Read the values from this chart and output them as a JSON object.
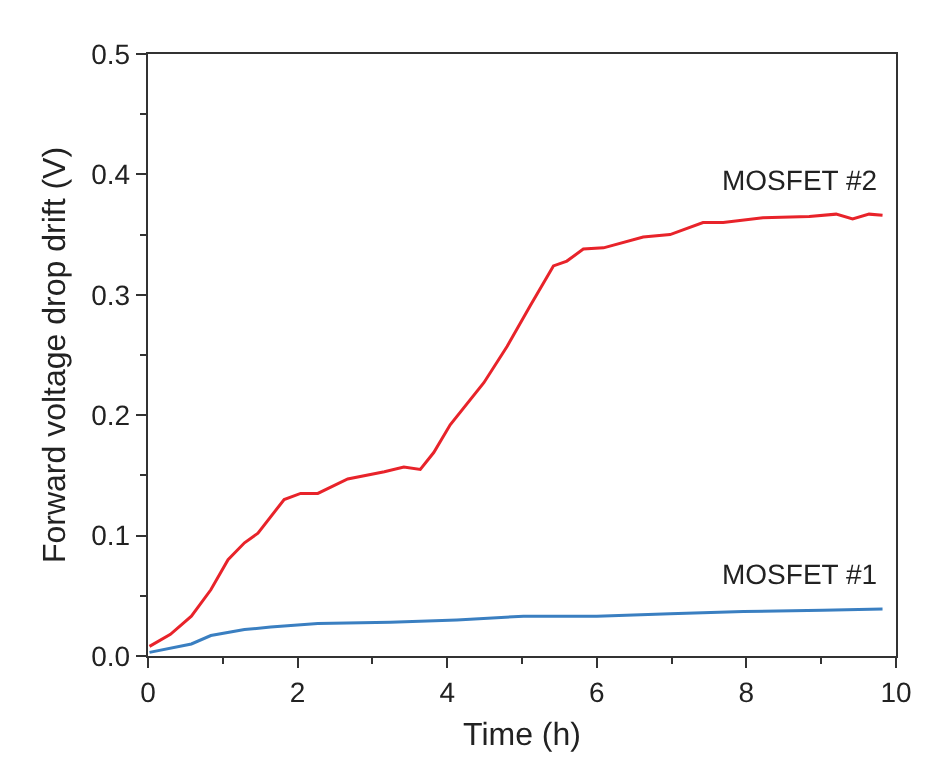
{
  "chart_data": {
    "type": "line",
    "xlabel": "Time (h)",
    "ylabel": "Forward voltage drop drift (V)",
    "xlim": [
      0,
      10
    ],
    "xticks": [
      0,
      2,
      4,
      6,
      8,
      10
    ],
    "ylim": [
      0,
      0.5
    ],
    "yticks": [
      {
        "value": 0,
        "label": "0.0"
      },
      {
        "value": 0.1,
        "label": "0.1"
      },
      {
        "value": 0.2,
        "label": "0.2"
      },
      {
        "value": 0.3,
        "label": "0.3"
      },
      {
        "value": 0.4,
        "label": "0.4"
      },
      {
        "value": 0.5,
        "label": "0.5"
      }
    ],
    "grid": false,
    "legend": false,
    "marker": "none",
    "line_style": "solid",
    "series": [
      {
        "name": "MOSFET #2",
        "color": "#e8232a",
        "x": [
          0.02,
          0.3,
          0.58,
          0.84,
          1.07,
          1.29,
          1.47,
          1.82,
          2.04,
          2.27,
          2.67,
          3.16,
          3.42,
          3.64,
          3.82,
          4.04,
          4.49,
          4.8,
          5.11,
          5.42,
          5.6,
          5.82,
          6.09,
          6.62,
          6.98,
          7.42,
          7.69,
          8.22,
          8.84,
          9.2,
          9.42,
          9.64,
          9.82
        ],
        "values": [
          0.008,
          0.018,
          0.033,
          0.055,
          0.08,
          0.094,
          0.102,
          0.13,
          0.135,
          0.135,
          0.147,
          0.153,
          0.157,
          0.155,
          0.169,
          0.192,
          0.227,
          0.257,
          0.291,
          0.324,
          0.328,
          0.338,
          0.339,
          0.348,
          0.35,
          0.36,
          0.36,
          0.364,
          0.365,
          0.367,
          0.363,
          0.367,
          0.366
        ]
      },
      {
        "name": "MOSFET #1",
        "color": "#3a7fc1",
        "x": [
          0.02,
          0.58,
          0.84,
          1.29,
          1.64,
          2.27,
          3.24,
          4.13,
          5.02,
          6.0,
          6.98,
          7.96,
          9.02,
          9.82
        ],
        "values": [
          0.003,
          0.01,
          0.017,
          0.022,
          0.024,
          0.027,
          0.028,
          0.03,
          0.033,
          0.033,
          0.035,
          0.037,
          0.038,
          0.039
        ]
      }
    ]
  }
}
